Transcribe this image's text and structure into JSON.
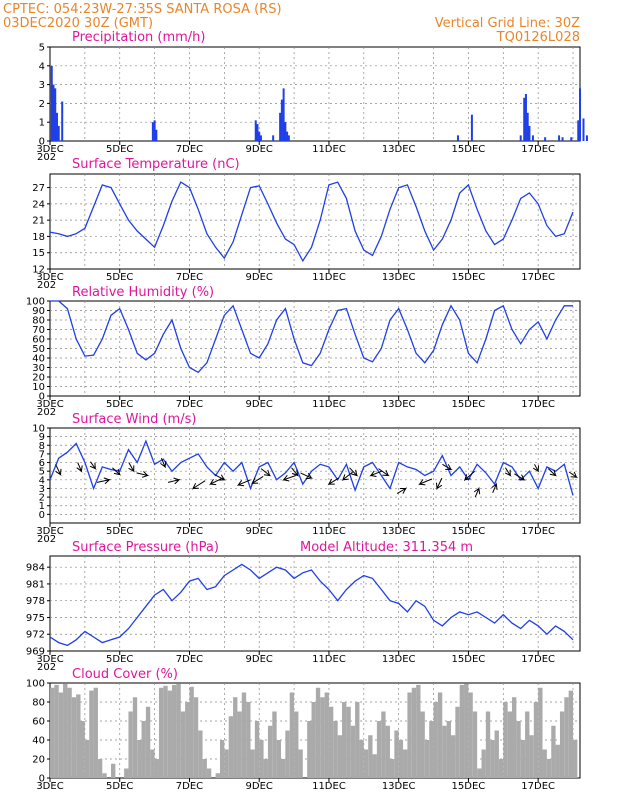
{
  "header": {
    "line1_left": "CPTEC:   054:23W-27:35S   SANTA ROSA (RS)",
    "line2_left": "03DEC2020 30Z (GMT)",
    "line1_right": "Vertical Grid Line: 30Z",
    "line2_right": "TQ0126L028"
  },
  "x_axis": {
    "labels": [
      "3DEC",
      "5DEC",
      "7DEC",
      "9DEC",
      "11DEC",
      "13DEC",
      "15DEC",
      "17DEC"
    ],
    "year_stub": "202"
  },
  "panel_titles": {
    "precip": "Precipitation (mm/h)",
    "temp": "Surface Temperature (nC)",
    "rh": "Relative Humidity (%)",
    "wind": "Surface Wind (m/s)",
    "pres": "Surface Pressure (hPa)",
    "pres_extra": "Model Altitude: 311.354 m",
    "cloud": "Cloud Cover (%)"
  },
  "chart_data": [
    {
      "id": "precip",
      "type": "bar",
      "title": "Precipitation (mm/h)",
      "x_unit": "days since 3DEC",
      "ylim": [
        0,
        5
      ],
      "yticks": [
        0,
        1,
        2,
        3,
        4,
        5
      ],
      "points": [
        [
          0.05,
          4.0
        ],
        [
          0.1,
          3.0
        ],
        [
          0.15,
          2.8
        ],
        [
          0.2,
          1.5
        ],
        [
          0.25,
          0.8
        ],
        [
          0.35,
          2.1
        ],
        [
          2.95,
          1.0
        ],
        [
          3.0,
          1.1
        ],
        [
          3.05,
          0.6
        ],
        [
          5.9,
          1.1
        ],
        [
          5.95,
          0.9
        ],
        [
          6.0,
          0.5
        ],
        [
          6.05,
          0.3
        ],
        [
          6.4,
          0.3
        ],
        [
          6.6,
          1.5
        ],
        [
          6.65,
          2.2
        ],
        [
          6.7,
          2.8
        ],
        [
          6.75,
          1.0
        ],
        [
          6.8,
          0.5
        ],
        [
          6.85,
          0.3
        ],
        [
          11.7,
          0.3
        ],
        [
          12.1,
          1.4
        ],
        [
          13.5,
          0.3
        ],
        [
          13.6,
          2.3
        ],
        [
          13.65,
          2.5
        ],
        [
          13.7,
          1.5
        ],
        [
          13.75,
          0.8
        ],
        [
          13.85,
          0.3
        ],
        [
          14.2,
          0.2
        ],
        [
          14.6,
          0.3
        ],
        [
          14.7,
          0.2
        ],
        [
          14.95,
          0.2
        ],
        [
          15.15,
          1.1
        ],
        [
          15.2,
          2.8
        ],
        [
          15.3,
          1.2
        ],
        [
          15.4,
          0.3
        ]
      ]
    },
    {
      "id": "temp",
      "type": "line",
      "title": "Surface Temperature (nC)",
      "ylim": [
        12,
        29.5
      ],
      "yticks": [
        12,
        15,
        18,
        21,
        24,
        27
      ],
      "x_step": 0.25,
      "values": [
        18.8,
        18.5,
        18.0,
        18.5,
        19.5,
        23.5,
        27.5,
        27.0,
        24.0,
        21.0,
        19.0,
        17.5,
        16.0,
        20.0,
        24.5,
        28.0,
        27.0,
        23.0,
        18.5,
        16.0,
        14.0,
        17.0,
        22.0,
        27.0,
        27.3,
        24.0,
        20.5,
        17.5,
        16.5,
        13.5,
        16.0,
        21.0,
        27.5,
        28.0,
        25.0,
        19.0,
        15.5,
        14.5,
        18.0,
        23.0,
        27.0,
        27.5,
        23.5,
        19.0,
        15.5,
        17.5,
        21.0,
        26.0,
        27.5,
        23.0,
        19.0,
        16.5,
        17.5,
        21.0,
        25.0,
        26.0,
        24.0,
        20.0,
        18.0,
        18.5,
        22.5,
        27.5,
        28.0,
        25.5,
        21.5,
        18.0,
        16.5,
        19.0,
        27.0,
        29.5,
        28.0,
        24.0,
        19.0,
        17.5,
        21.0,
        25.0,
        28.5,
        29.0,
        24.5,
        19.5,
        17.0,
        17.5,
        22.0,
        26.5,
        29.0,
        28.5,
        23.0,
        18.5,
        16.0,
        18.5,
        23.5,
        27.5,
        29.0,
        26.0,
        21.0,
        17.5,
        16.5,
        20.0,
        25.0,
        28.5,
        28.0,
        24.0,
        20.0,
        18.5,
        20.5,
        25.0,
        29.0,
        28.5,
        25.0,
        22.0,
        21.0,
        22.5,
        26.0,
        28.5,
        28.0,
        24.0,
        20.0,
        18.5,
        22.0,
        28.0,
        29.0,
        27.5,
        24.0,
        21.5,
        21.0,
        24.0,
        28.0,
        29.0,
        29.0,
        27.0
      ]
    },
    {
      "id": "rh",
      "type": "line",
      "title": "Relative Humidity (%)",
      "ylim": [
        0,
        100
      ],
      "yticks": [
        0,
        10,
        20,
        30,
        40,
        50,
        60,
        70,
        80,
        90,
        100
      ],
      "x_step": 0.25,
      "values": [
        100,
        100,
        92,
        60,
        42,
        43,
        60,
        85,
        92,
        70,
        45,
        38,
        45,
        65,
        80,
        50,
        30,
        25,
        35,
        60,
        85,
        95,
        70,
        45,
        40,
        55,
        80,
        92,
        60,
        35,
        32,
        45,
        70,
        90,
        92,
        65,
        40,
        36,
        50,
        80,
        92,
        70,
        45,
        35,
        48,
        75,
        95,
        80,
        45,
        35,
        60,
        90,
        95,
        70,
        55,
        70,
        78,
        60,
        80,
        95,
        95,
        70,
        40,
        35,
        55,
        85,
        100,
        100,
        75,
        45,
        33,
        40,
        70,
        90,
        93,
        65,
        40,
        33,
        50,
        80,
        95,
        80,
        42,
        30,
        30,
        45,
        75,
        95,
        90,
        60,
        35,
        30,
        45,
        75,
        95,
        90,
        55,
        35,
        32,
        50,
        78,
        90,
        70,
        45,
        40,
        55,
        70,
        80,
        68,
        45,
        40,
        50,
        70,
        82,
        68,
        40,
        35,
        50,
        80,
        95,
        75,
        42,
        40,
        75,
        100,
        98,
        65,
        45,
        42,
        70
      ]
    },
    {
      "id": "wind",
      "type": "line",
      "title": "Surface Wind (m/s)",
      "ylim": [
        -1,
        10
      ],
      "yticks": [
        0,
        1,
        2,
        3,
        4,
        5,
        6,
        7,
        8,
        9,
        10
      ],
      "x_step": 0.25,
      "values": [
        4.0,
        6.5,
        7.2,
        8.2,
        6.0,
        3.0,
        5.5,
        5.2,
        5.0,
        7.5,
        6.0,
        8.5,
        5.8,
        6.4,
        5.0,
        6.0,
        6.5,
        7.0,
        5.5,
        4.5,
        6.0,
        5.0,
        6.0,
        3.0,
        5.5,
        6.0,
        4.0,
        4.8,
        6.0,
        3.5,
        5.0,
        5.8,
        5.5,
        4.0,
        5.8,
        2.8,
        5.5,
        6.0,
        4.5,
        3.0,
        6.0,
        5.5,
        5.2,
        4.5,
        5.0,
        6.8,
        4.5,
        5.5,
        4.0,
        5.8,
        4.8,
        3.5,
        6.0,
        5.5,
        4.0,
        5.0,
        3.0,
        5.5,
        5.0,
        5.8,
        2.2,
        6.0,
        4.0,
        5.5,
        6.0,
        2.0,
        5.0,
        6.5,
        4.0,
        5.5,
        4.5,
        2.0,
        5.5,
        5.0,
        6.0,
        4.0,
        3.5,
        6.0,
        4.8,
        3.5,
        6.0,
        3.0,
        5.0,
        6.5,
        3.5,
        4.5,
        5.0,
        5.8,
        2.0,
        5.5,
        4.0,
        6.5,
        4.0,
        3.0,
        5.0,
        6.0,
        3.5,
        5.0,
        6.8,
        4.5,
        5.0,
        3.0,
        5.8,
        5.0,
        5.3,
        4.0,
        6.5,
        5.5,
        4.5,
        5.0,
        5.5,
        4.5,
        5.0,
        5.5,
        4.0,
        5.5,
        4.5,
        5.0,
        4.0,
        5.0,
        5.5,
        3.0,
        4.5,
        5.0,
        4.5,
        5.2,
        4.0,
        2.5,
        0.5,
        4.5
      ],
      "arrows": [
        {
          "x": 0.3,
          "v": 4.6,
          "dx": -0.4,
          "dy": 1.2
        },
        {
          "x": 0.9,
          "v": 5.0,
          "dx": -0.3,
          "dy": 1.0
        },
        {
          "x": 1.3,
          "v": 5.3,
          "dx": -0.4,
          "dy": 0.8
        },
        {
          "x": 1.7,
          "v": 4.0,
          "dx": -1.0,
          "dy": -0.3
        },
        {
          "x": 2.0,
          "v": 4.6,
          "dx": -0.6,
          "dy": 0.8
        },
        {
          "x": 2.4,
          "v": 5.0,
          "dx": -0.4,
          "dy": 1.0
        },
        {
          "x": 2.8,
          "v": 4.5,
          "dx": -0.9,
          "dy": 0.3
        },
        {
          "x": 3.3,
          "v": 5.5,
          "dx": -0.3,
          "dy": 1.0
        },
        {
          "x": 3.7,
          "v": 4.0,
          "dx": -0.9,
          "dy": -0.3
        },
        {
          "x": 4.1,
          "v": 3.0,
          "dx": 1.0,
          "dy": 0.9
        },
        {
          "x": 4.6,
          "v": 3.5,
          "dx": 1.0,
          "dy": 0.7
        },
        {
          "x": 5.0,
          "v": 4.0,
          "dx": -0.8,
          "dy": 0.6
        },
        {
          "x": 5.4,
          "v": 3.4,
          "dx": 1.0,
          "dy": 0.6
        },
        {
          "x": 5.8,
          "v": 3.6,
          "dx": 0.9,
          "dy": 0.8
        },
        {
          "x": 6.3,
          "v": 4.5,
          "dx": -0.7,
          "dy": 0.8
        },
        {
          "x": 6.7,
          "v": 4.0,
          "dx": 1.0,
          "dy": 0.5
        },
        {
          "x": 7.1,
          "v": 4.5,
          "dx": -0.5,
          "dy": 0.9
        },
        {
          "x": 7.5,
          "v": 4.2,
          "dx": -0.9,
          "dy": 0.6
        },
        {
          "x": 8.0,
          "v": 3.5,
          "dx": 0.8,
          "dy": 0.7
        },
        {
          "x": 8.4,
          "v": 4.0,
          "dx": 0.8,
          "dy": 0.9
        },
        {
          "x": 8.8,
          "v": 4.5,
          "dx": -0.6,
          "dy": 0.9
        },
        {
          "x": 9.2,
          "v": 4.5,
          "dx": 0.9,
          "dy": 0.5
        },
        {
          "x": 9.7,
          "v": 4.5,
          "dx": -0.8,
          "dy": 0.8
        },
        {
          "x": 10.2,
          "v": 3.0,
          "dx": -0.7,
          "dy": -0.6
        },
        {
          "x": 10.6,
          "v": 3.5,
          "dx": 1.0,
          "dy": 0.6
        },
        {
          "x": 11.1,
          "v": 3.0,
          "dx": 0.4,
          "dy": 1.2
        },
        {
          "x": 11.5,
          "v": 5.2,
          "dx": -0.7,
          "dy": 0.6
        },
        {
          "x": 11.9,
          "v": 4.0,
          "dx": 0.8,
          "dy": 1.0
        },
        {
          "x": 12.3,
          "v": 3.0,
          "dx": -0.3,
          "dy": -1.0
        },
        {
          "x": 12.8,
          "v": 3.5,
          "dx": -0.3,
          "dy": -1.0
        },
        {
          "x": 13.2,
          "v": 4.5,
          "dx": -0.4,
          "dy": 0.9
        },
        {
          "x": 13.6,
          "v": 4.0,
          "dx": -0.8,
          "dy": 0.7
        },
        {
          "x": 14.0,
          "v": 5.0,
          "dx": -0.3,
          "dy": 0.8
        },
        {
          "x": 14.5,
          "v": 4.5,
          "dx": -0.6,
          "dy": 0.8
        },
        {
          "x": 15.1,
          "v": 4.3,
          "dx": -0.6,
          "dy": 0.6
        }
      ]
    },
    {
      "id": "pres",
      "type": "line",
      "title": "Surface Pressure (hPa)",
      "ylim": [
        969,
        986
      ],
      "yticks": [
        969,
        972,
        975,
        978,
        981,
        984
      ],
      "x_step": 0.25,
      "values": [
        971.5,
        970.5,
        970.0,
        971.0,
        972.5,
        971.5,
        970.5,
        971.0,
        971.5,
        973.0,
        975.0,
        977.0,
        979.0,
        980.0,
        978.0,
        979.5,
        981.5,
        982.0,
        980.0,
        980.5,
        982.5,
        983.5,
        984.5,
        983.5,
        982.0,
        983.0,
        984.0,
        983.5,
        982.0,
        983.0,
        983.5,
        981.5,
        980.0,
        978.0,
        980.0,
        981.5,
        982.5,
        982.0,
        980.0,
        978.0,
        977.5,
        976.0,
        978.0,
        977.0,
        974.5,
        973.5,
        975.0,
        976.0,
        975.5,
        976.0,
        975.0,
        974.0,
        975.5,
        974.0,
        973.0,
        974.5,
        973.5,
        972.0,
        973.5,
        972.5,
        971.0,
        972.0,
        970.5,
        971.5,
        972.5,
        971.0,
        972.0,
        970.0,
        971.0,
        972.5,
        971.5,
        971.0,
        971.5,
        970.0,
        971.0,
        972.0,
        970.5,
        969.5,
        970.5,
        971.5,
        970.0,
        971.0,
        972.5,
        970.5,
        971.0,
        972.5,
        971.0,
        970.0,
        971.5,
        973.0,
        971.5,
        972.0,
        973.0,
        971.0,
        970.5,
        971.0,
        970.0,
        969.5,
        970.5,
        969.0,
        969.5,
        971.0,
        970.0,
        970.5,
        970.0,
        969.0,
        969.5,
        970.5,
        971.0,
        969.5
      ]
    },
    {
      "id": "cloud",
      "type": "bar",
      "title": "Cloud Cover (%)",
      "ylim": [
        0,
        100
      ],
      "yticks": [
        0,
        20,
        40,
        60,
        80,
        100
      ],
      "x_step": 0.125,
      "values": [
        95,
        98,
        90,
        99,
        95,
        85,
        88,
        60,
        40,
        92,
        95,
        20,
        5,
        0,
        15,
        0,
        0,
        10,
        70,
        85,
        40,
        60,
        75,
        30,
        20,
        95,
        97,
        92,
        98,
        99,
        70,
        80,
        96,
        85,
        50,
        20,
        10,
        0,
        5,
        40,
        30,
        65,
        85,
        70,
        90,
        80,
        30,
        60,
        40,
        20,
        55,
        70,
        40,
        20,
        50,
        90,
        70,
        30,
        0,
        60,
        80,
        95,
        85,
        90,
        75,
        60,
        45,
        80,
        75,
        55,
        80,
        40,
        30,
        45,
        25,
        60,
        70,
        55,
        20,
        50,
        40,
        30,
        90,
        95,
        98,
        70,
        40,
        60,
        80,
        90,
        55,
        60,
        45,
        75,
        98,
        99,
        90,
        70,
        10,
        30,
        70,
        40,
        50,
        20,
        80,
        70,
        85,
        60,
        40,
        70,
        45,
        80,
        95,
        30,
        20,
        55,
        35,
        70,
        85,
        92,
        40,
        60,
        20,
        50,
        30,
        80,
        90,
        98,
        85,
        70,
        25,
        40,
        60,
        30,
        70,
        20,
        50,
        60,
        40,
        80,
        55,
        70,
        90,
        70,
        40,
        50,
        60,
        35,
        65,
        20,
        30,
        60,
        70,
        40,
        20,
        50,
        60,
        40,
        80,
        75,
        55,
        40,
        30,
        80,
        75,
        60,
        65,
        90,
        95,
        80,
        70,
        85,
        60,
        50,
        75,
        92,
        95,
        98,
        80,
        70,
        40,
        30,
        85,
        90,
        95,
        100,
        98,
        95,
        92,
        80,
        60,
        40,
        70,
        75,
        55,
        40,
        80,
        90,
        70,
        60,
        30,
        50,
        75,
        80,
        45,
        30,
        20,
        40,
        60,
        80,
        90,
        96,
        100,
        90,
        75,
        80,
        70,
        40,
        20,
        15,
        10,
        5,
        60,
        70,
        10
      ]
    }
  ]
}
